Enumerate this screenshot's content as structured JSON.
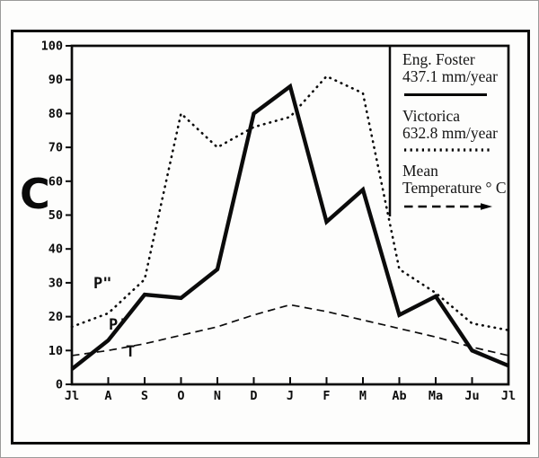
{
  "panel_label": "C",
  "legend": {
    "entries": [
      {
        "name": "Eng. Foster",
        "value": "437.1 mm/year",
        "style": "solid"
      },
      {
        "name": "Victorica",
        "value": "632.8 mm/year",
        "style": "dotted"
      },
      {
        "name": "Mean",
        "value": "Temperature ° C",
        "style": "dashed-arrow"
      }
    ]
  },
  "curve_labels": {
    "victorica": "P\"",
    "eng_foster": "P'",
    "temperature": "T"
  },
  "chart_data": {
    "type": "line",
    "title": "",
    "panel_label": "C",
    "xlabel": "",
    "ylabel": "",
    "grid": false,
    "legend_position": "top-right-inside",
    "ylim": [
      0,
      100
    ],
    "y_ticks": [
      0,
      10,
      20,
      30,
      40,
      50,
      60,
      70,
      80,
      90,
      100
    ],
    "x_categories": [
      "Jl",
      "A",
      "S",
      "O",
      "N",
      "D",
      "J",
      "F",
      "M",
      "Ab",
      "Ma",
      "Ju",
      "Jl"
    ],
    "series": [
      {
        "name": "Eng. Foster",
        "annual_total_label": "437.1 mm/year",
        "curve_label": "P'",
        "line_style": "solid-thick",
        "values": [
          4.5,
          13,
          26.5,
          25.5,
          34,
          80,
          88,
          48,
          57.5,
          20.5,
          26,
          10,
          5.5
        ]
      },
      {
        "name": "Victorica",
        "annual_total_label": "632.8 mm/year",
        "curve_label": "P\"",
        "line_style": "dotted",
        "values": [
          17,
          21,
          31,
          80,
          70,
          76,
          79,
          91,
          86,
          34,
          27,
          18,
          16
        ]
      },
      {
        "name": "Mean Temperature °C",
        "curve_label": "T",
        "line_style": "dashed",
        "values": [
          8.5,
          10,
          12,
          14.5,
          17,
          20.5,
          23.5,
          21.5,
          19,
          16.5,
          14,
          11,
          8.5
        ]
      }
    ]
  }
}
